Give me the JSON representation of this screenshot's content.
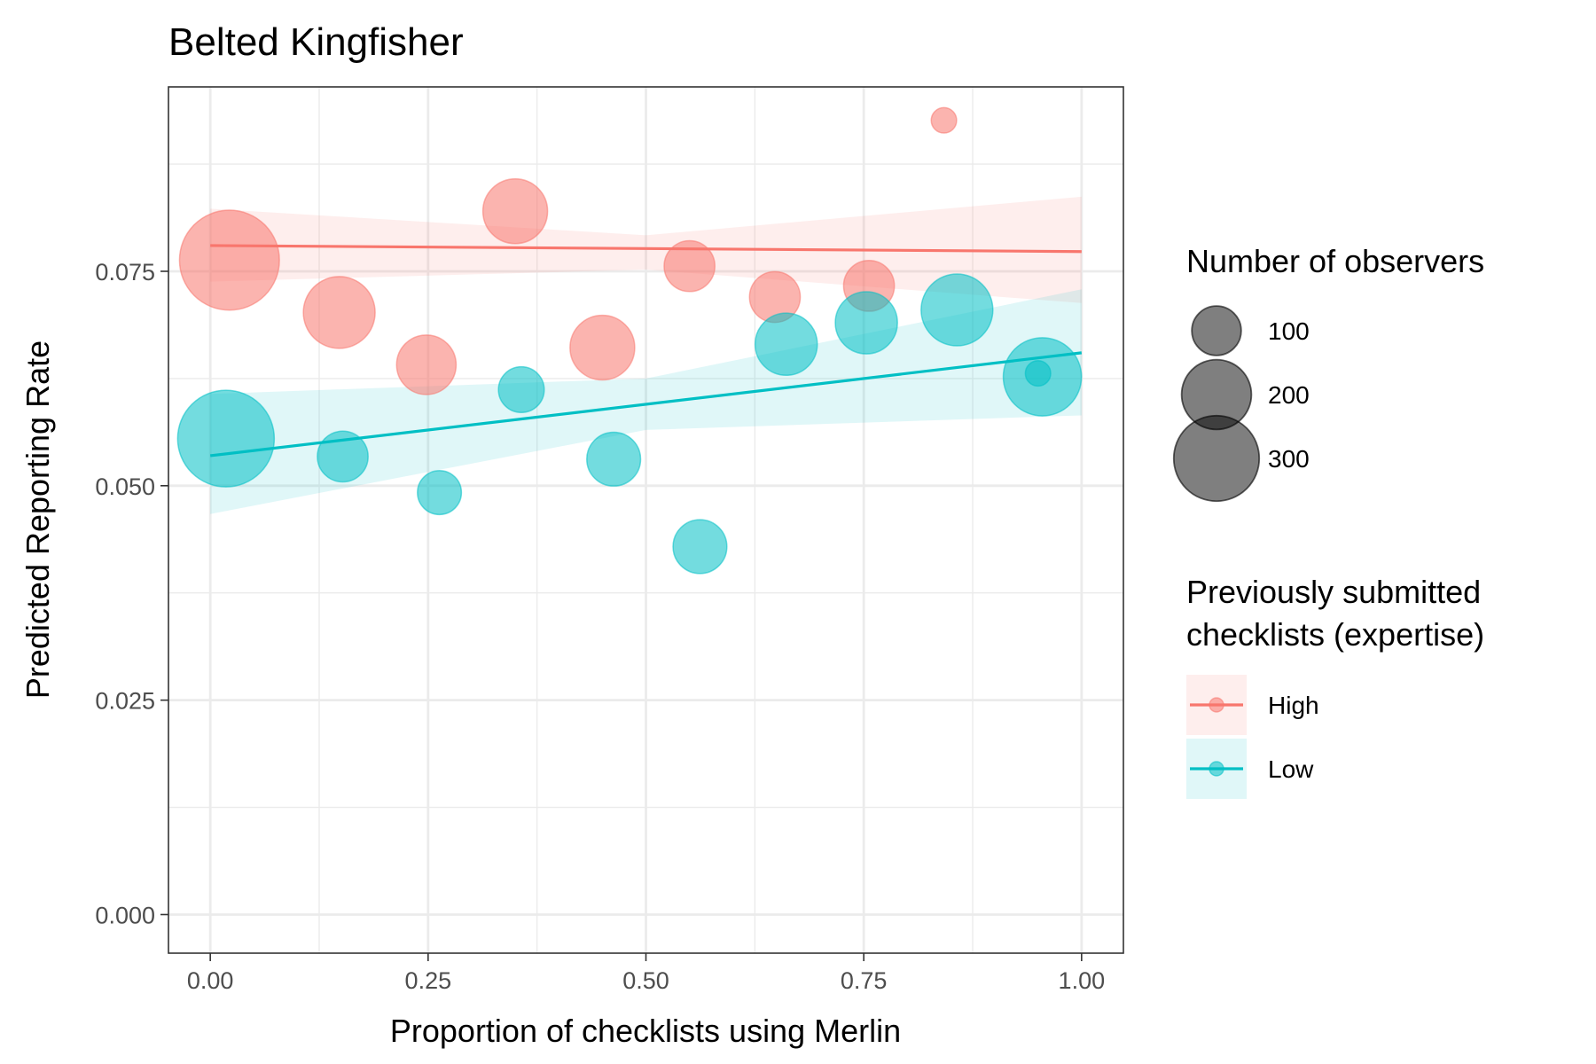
{
  "chart_data": {
    "type": "scatter",
    "title": "Belted Kingfisher",
    "xlabel": "Proportion of checklists using Merlin",
    "ylabel": "Predicted Reporting Rate",
    "xlim": [
      -0.048,
      1.048
    ],
    "ylim": [
      -0.0045,
      0.0965
    ],
    "x_ticks": [
      0,
      0.25,
      0.5,
      0.75,
      1
    ],
    "x_tick_labels": [
      "0.00",
      "0.25",
      "0.50",
      "0.75",
      "1.00"
    ],
    "y_ticks": [
      0,
      0.025,
      0.05,
      0.075
    ],
    "y_tick_labels": [
      "0.000",
      "0.025",
      "0.050",
      "0.075"
    ],
    "grid": true,
    "legend_position": "right",
    "size_legend": {
      "title": "Number of observers",
      "entries": [
        {
          "label": "100",
          "value": 100
        },
        {
          "label": "200",
          "value": 200
        },
        {
          "label": "300",
          "value": 300
        }
      ]
    },
    "color_legend": {
      "title_lines": [
        "Previously submitted",
        "checklists (expertise)"
      ],
      "entries": [
        {
          "label": "High",
          "color": "#F8766D"
        },
        {
          "label": "Low",
          "color": "#00BFC4"
        }
      ]
    },
    "series": [
      {
        "name": "High",
        "color": "#F8766D",
        "points": [
          {
            "x": 0.022,
            "y": 0.0763,
            "n": 310
          },
          {
            "x": 0.148,
            "y": 0.0702,
            "n": 160
          },
          {
            "x": 0.248,
            "y": 0.0641,
            "n": 110
          },
          {
            "x": 0.35,
            "y": 0.082,
            "n": 130
          },
          {
            "x": 0.45,
            "y": 0.0661,
            "n": 130
          },
          {
            "x": 0.55,
            "y": 0.0756,
            "n": 80
          },
          {
            "x": 0.648,
            "y": 0.072,
            "n": 80
          },
          {
            "x": 0.756,
            "y": 0.0733,
            "n": 80
          },
          {
            "x": 0.842,
            "y": 0.0926,
            "n": 20
          }
        ],
        "trend": {
          "x": [
            0,
            1
          ],
          "y": [
            0.078,
            0.0773
          ]
        },
        "ribbon": {
          "x": [
            0,
            0.5,
            1
          ],
          "lower": [
            0.0738,
            0.0752,
            0.0713
          ],
          "upper": [
            0.0823,
            0.0792,
            0.0837
          ]
        }
      },
      {
        "name": "Low",
        "color": "#00BFC4",
        "points": [
          {
            "x": 0.018,
            "y": 0.0555,
            "n": 290
          },
          {
            "x": 0.152,
            "y": 0.0534,
            "n": 80
          },
          {
            "x": 0.263,
            "y": 0.0492,
            "n": 60
          },
          {
            "x": 0.357,
            "y": 0.0612,
            "n": 65
          },
          {
            "x": 0.463,
            "y": 0.0531,
            "n": 90
          },
          {
            "x": 0.562,
            "y": 0.0429,
            "n": 90
          },
          {
            "x": 0.661,
            "y": 0.0665,
            "n": 120
          },
          {
            "x": 0.753,
            "y": 0.069,
            "n": 120
          },
          {
            "x": 0.857,
            "y": 0.0705,
            "n": 160
          },
          {
            "x": 0.95,
            "y": 0.0631,
            "n": 20
          },
          {
            "x": 0.955,
            "y": 0.0627,
            "n": 190
          }
        ],
        "trend": {
          "x": [
            0,
            1
          ],
          "y": [
            0.0535,
            0.0655
          ]
        },
        "ribbon": {
          "x": [
            0,
            0.5,
            1
          ],
          "lower": [
            0.0467,
            0.0565,
            0.0582
          ],
          "upper": [
            0.0607,
            0.0625,
            0.0729
          ]
        }
      }
    ]
  }
}
